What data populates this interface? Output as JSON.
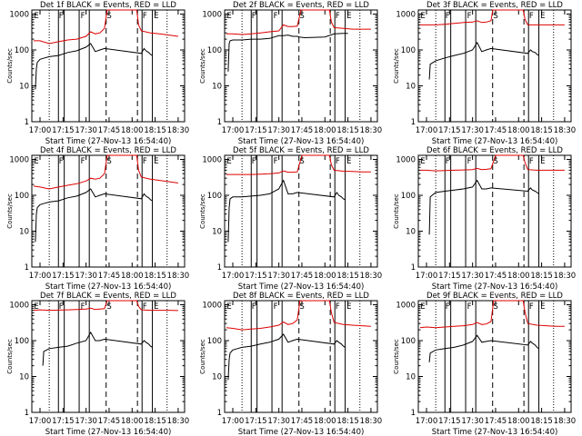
{
  "colors": {
    "events": "#000000",
    "lld": "#dd0000",
    "axis": "#000000"
  },
  "common": {
    "xlabel": "Start Time (27-Nov-13 16:54:40)",
    "ylabel": "Counts/sec",
    "xticks": [
      {
        "value": 17.0,
        "label": "17:00"
      },
      {
        "value": 17.25,
        "label": "17:15"
      },
      {
        "value": 17.5,
        "label": "17:30"
      },
      {
        "value": 17.75,
        "label": "17:45"
      },
      {
        "value": 18.0,
        "label": "18:00"
      },
      {
        "value": 18.25,
        "label": "18:15"
      },
      {
        "value": 18.5,
        "label": "18:30"
      }
    ],
    "yticks": [
      {
        "value": 1,
        "label": "1"
      },
      {
        "value": 10,
        "label": "10"
      },
      {
        "value": 100,
        "label": "100"
      },
      {
        "value": 1000,
        "label": "1000"
      }
    ],
    "xlim_hours": [
      16.911,
      18.57
    ],
    "ylim": [
      1,
      1300
    ],
    "yscale": "log",
    "dotted_lines_hours": [
      17.1,
      18.38
    ],
    "dashed_lines_hours": [
      17.718,
      18.058
    ],
    "solid_lines_hours": [
      17.2,
      17.263,
      17.425,
      17.535,
      18.108,
      18.22
    ],
    "region_labels": [
      {
        "text": "E",
        "hours": 16.935
      },
      {
        "text": "F",
        "hours": 17.205
      },
      {
        "text": "F",
        "hours": 17.44
      },
      {
        "text": "S",
        "hours": 17.725
      },
      {
        "text": "F",
        "hours": 18.115
      },
      {
        "text": "E",
        "hours": 18.235
      }
    ]
  },
  "chart_data": [
    {
      "type": "line",
      "title": "Det 1f BLACK = Events, RED = LLD",
      "series": [
        {
          "name": "Events",
          "color": "#000000",
          "x": [
            16.95,
            16.96,
            16.97,
            17.0,
            17.05,
            17.1,
            17.2,
            17.3,
            17.4,
            17.5,
            17.55,
            17.6,
            17.65,
            17.7,
            18.1,
            18.13,
            18.15,
            18.18,
            18.2,
            18.22
          ],
          "y": [
            8,
            30,
            45,
            55,
            60,
            65,
            70,
            85,
            95,
            120,
            150,
            90,
            100,
            110,
            80,
            110,
            95,
            85,
            75,
            70
          ]
        },
        {
          "name": "LLD",
          "color": "#dd0000",
          "x": [
            16.93,
            17.0,
            17.1,
            17.2,
            17.3,
            17.4,
            17.5,
            17.55,
            17.6,
            17.65,
            17.7,
            17.73,
            17.78,
            18.05,
            18.07,
            18.1,
            18.2,
            18.3,
            18.4,
            18.5
          ],
          "y": [
            180,
            180,
            150,
            170,
            190,
            200,
            240,
            320,
            280,
            300,
            400,
            1300,
            1300,
            1300,
            500,
            340,
            300,
            280,
            260,
            240
          ]
        }
      ]
    },
    {
      "type": "line",
      "title": "Det 2f BLACK = Events, RED = LLD",
      "series": [
        {
          "name": "Events",
          "color": "#000000",
          "x": [
            16.95,
            16.96,
            16.97,
            17.0,
            17.1,
            17.2,
            17.3,
            17.4,
            17.5,
            17.55,
            17.6,
            17.65,
            17.7,
            17.72,
            17.78,
            18.0,
            18.1,
            18.2,
            18.25
          ],
          "y": [
            25,
            150,
            180,
            190,
            190,
            200,
            200,
            210,
            250,
            250,
            260,
            240,
            240,
            230,
            220,
            230,
            280,
            290,
            290
          ]
        },
        {
          "name": "LLD",
          "color": "#dd0000",
          "x": [
            16.93,
            17.0,
            17.1,
            17.2,
            17.3,
            17.4,
            17.5,
            17.55,
            17.6,
            17.65,
            17.7,
            17.74,
            17.78,
            18.05,
            18.07,
            18.1,
            18.2,
            18.3,
            18.4,
            18.5
          ],
          "y": [
            280,
            280,
            270,
            280,
            300,
            320,
            340,
            500,
            450,
            450,
            460,
            1300,
            1300,
            1300,
            600,
            420,
            400,
            380,
            380,
            380
          ]
        }
      ]
    },
    {
      "type": "line",
      "title": "Det 3f BLACK = Events, RED = LLD",
      "series": [
        {
          "name": "Events",
          "color": "#000000",
          "x": [
            17.03,
            17.04,
            17.1,
            17.2,
            17.3,
            17.4,
            17.5,
            17.55,
            17.6,
            17.65,
            17.7,
            18.1,
            18.13,
            18.15,
            18.18,
            18.2,
            18.22
          ],
          "y": [
            15,
            40,
            50,
            60,
            70,
            80,
            100,
            160,
            90,
            100,
            110,
            80,
            100,
            90,
            85,
            75,
            70
          ]
        },
        {
          "name": "LLD",
          "color": "#dd0000",
          "x": [
            16.93,
            17.0,
            17.1,
            17.2,
            17.3,
            17.4,
            17.5,
            17.55,
            17.6,
            17.65,
            17.7,
            17.72,
            17.78,
            18.05,
            18.07,
            18.1,
            18.2,
            18.3,
            18.4,
            18.5
          ],
          "y": [
            500,
            500,
            500,
            520,
            550,
            580,
            600,
            650,
            580,
            600,
            650,
            1300,
            1300,
            1300,
            700,
            500,
            500,
            500,
            500,
            500
          ]
        }
      ]
    },
    {
      "type": "line",
      "title": "Det 4f BLACK = Events, RED = LLD",
      "series": [
        {
          "name": "Events",
          "color": "#000000",
          "x": [
            16.95,
            16.96,
            16.97,
            17.0,
            17.05,
            17.1,
            17.2,
            17.3,
            17.4,
            17.5,
            17.55,
            17.6,
            17.65,
            17.7,
            18.1,
            18.13,
            18.15,
            18.18,
            18.2,
            18.22
          ],
          "y": [
            5,
            30,
            45,
            55,
            60,
            65,
            70,
            85,
            95,
            120,
            150,
            90,
            100,
            110,
            80,
            110,
            95,
            85,
            75,
            70
          ]
        },
        {
          "name": "LLD",
          "color": "#dd0000",
          "x": [
            16.93,
            17.0,
            17.1,
            17.2,
            17.3,
            17.4,
            17.5,
            17.55,
            17.6,
            17.65,
            17.7,
            17.73,
            17.78,
            18.05,
            18.07,
            18.1,
            18.2,
            18.3,
            18.4,
            18.5
          ],
          "y": [
            180,
            170,
            150,
            170,
            190,
            210,
            250,
            300,
            280,
            300,
            400,
            1300,
            1300,
            1300,
            500,
            320,
            280,
            260,
            240,
            220
          ]
        }
      ]
    },
    {
      "type": "line",
      "title": "Det 5f BLACK = Events, RED = LLD",
      "series": [
        {
          "name": "Events",
          "color": "#000000",
          "x": [
            16.95,
            16.96,
            16.97,
            17.0,
            17.1,
            17.2,
            17.3,
            17.4,
            17.5,
            17.55,
            17.6,
            17.65,
            17.7,
            18.1,
            18.13,
            18.15,
            18.18,
            18.2,
            18.22
          ],
          "y": [
            5,
            45,
            80,
            90,
            90,
            95,
            100,
            110,
            150,
            260,
            110,
            110,
            120,
            90,
            120,
            100,
            90,
            80,
            75
          ]
        },
        {
          "name": "LLD",
          "color": "#dd0000",
          "x": [
            16.93,
            17.0,
            17.1,
            17.2,
            17.3,
            17.4,
            17.5,
            17.55,
            17.6,
            17.65,
            17.7,
            17.75,
            17.8,
            18.05,
            18.07,
            18.1,
            18.2,
            18.3,
            18.4,
            18.5
          ],
          "y": [
            380,
            380,
            380,
            380,
            390,
            400,
            420,
            480,
            440,
            440,
            450,
            1300,
            1300,
            1300,
            700,
            500,
            470,
            460,
            450,
            450
          ]
        }
      ]
    },
    {
      "type": "line",
      "title": "Det 6f BLACK = Events, RED = LLD",
      "series": [
        {
          "name": "Events",
          "color": "#000000",
          "x": [
            17.03,
            17.04,
            17.1,
            17.2,
            17.3,
            17.4,
            17.5,
            17.55,
            17.6,
            17.65,
            17.7,
            18.1,
            18.13,
            18.15,
            18.18,
            18.2,
            18.22
          ],
          "y": [
            8,
            90,
            120,
            130,
            140,
            150,
            170,
            260,
            150,
            150,
            160,
            130,
            160,
            140,
            130,
            120,
            110
          ]
        },
        {
          "name": "LLD",
          "color": "#dd0000",
          "x": [
            16.93,
            17.0,
            17.1,
            17.2,
            17.3,
            17.4,
            17.5,
            17.55,
            17.6,
            17.65,
            17.7,
            17.75,
            17.8,
            18.05,
            18.07,
            18.1,
            18.2,
            18.3,
            18.4,
            18.5
          ],
          "y": [
            500,
            500,
            480,
            490,
            500,
            510,
            520,
            560,
            520,
            530,
            550,
            1300,
            1300,
            1300,
            800,
            520,
            500,
            500,
            500,
            500
          ]
        }
      ]
    },
    {
      "type": "line",
      "title": "Det 7f BLACK = Events, RED = LLD",
      "series": [
        {
          "name": "Events",
          "color": "#000000",
          "x": [
            17.03,
            17.04,
            17.1,
            17.2,
            17.3,
            17.4,
            17.5,
            17.55,
            17.6,
            17.65,
            17.7,
            18.1,
            18.13,
            18.15,
            18.18,
            18.2,
            18.22
          ],
          "y": [
            20,
            50,
            60,
            65,
            70,
            85,
            100,
            170,
            100,
            100,
            110,
            80,
            100,
            90,
            80,
            70,
            65
          ]
        },
        {
          "name": "LLD",
          "color": "#dd0000",
          "x": [
            16.93,
            17.0,
            17.1,
            17.2,
            17.3,
            17.4,
            17.5,
            17.55,
            17.6,
            17.65,
            17.7,
            17.73,
            17.78,
            18.05,
            18.07,
            18.1,
            18.2,
            18.3,
            18.4,
            18.5
          ],
          "y": [
            700,
            720,
            700,
            710,
            720,
            740,
            760,
            800,
            740,
            760,
            780,
            1300,
            1300,
            1300,
            900,
            720,
            700,
            700,
            700,
            690
          ]
        }
      ]
    },
    {
      "type": "line",
      "title": "Det 8f BLACK = Events, RED = LLD",
      "series": [
        {
          "name": "Events",
          "color": "#000000",
          "x": [
            16.95,
            16.96,
            16.97,
            17.0,
            17.05,
            17.1,
            17.2,
            17.3,
            17.4,
            17.5,
            17.55,
            17.6,
            17.65,
            17.7,
            18.1,
            18.13,
            18.15,
            18.18,
            18.2,
            18.22
          ],
          "y": [
            8,
            30,
            45,
            55,
            60,
            65,
            70,
            80,
            90,
            110,
            150,
            90,
            100,
            110,
            80,
            100,
            90,
            80,
            70,
            65
          ]
        },
        {
          "name": "LLD",
          "color": "#dd0000",
          "x": [
            16.93,
            17.0,
            17.1,
            17.2,
            17.3,
            17.4,
            17.5,
            17.55,
            17.6,
            17.65,
            17.7,
            17.73,
            17.78,
            18.05,
            18.07,
            18.1,
            18.2,
            18.3,
            18.4,
            18.5
          ],
          "y": [
            230,
            220,
            200,
            210,
            220,
            240,
            270,
            330,
            280,
            300,
            380,
            1300,
            1300,
            1300,
            600,
            320,
            280,
            270,
            260,
            250
          ]
        }
      ]
    },
    {
      "type": "line",
      "title": "Det 9f BLACK = Events, RED = LLD",
      "series": [
        {
          "name": "Events",
          "color": "#000000",
          "x": [
            17.03,
            17.04,
            17.1,
            17.2,
            17.3,
            17.4,
            17.5,
            17.55,
            17.6,
            17.65,
            17.7,
            18.1,
            18.13,
            18.15,
            18.18,
            18.2,
            18.22
          ],
          "y": [
            25,
            45,
            55,
            60,
            65,
            75,
            95,
            140,
            90,
            95,
            100,
            75,
            95,
            85,
            75,
            65,
            60
          ]
        },
        {
          "name": "LLD",
          "color": "#dd0000",
          "x": [
            16.93,
            17.0,
            17.1,
            17.2,
            17.3,
            17.4,
            17.5,
            17.55,
            17.6,
            17.65,
            17.7,
            17.73,
            17.78,
            18.05,
            18.07,
            18.1,
            18.2,
            18.3,
            18.4,
            18.5
          ],
          "y": [
            230,
            240,
            230,
            240,
            250,
            260,
            280,
            320,
            280,
            290,
            340,
            1300,
            1300,
            1300,
            600,
            300,
            270,
            260,
            250,
            250
          ]
        }
      ]
    }
  ]
}
